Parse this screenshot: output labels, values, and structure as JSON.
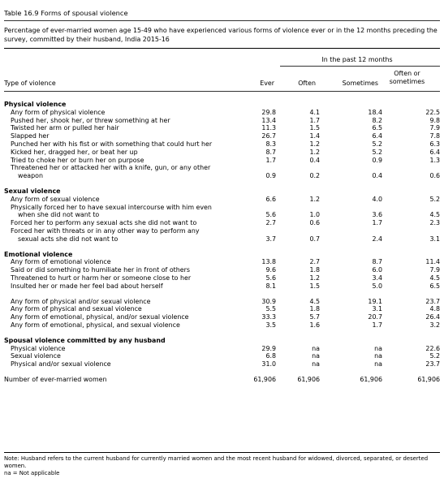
{
  "table": {
    "title": "Table 16.9 Forms of spousal violence",
    "subtitle": "Percentage of ever-married women age 15-49 who have experienced various forms of violence ever or in the 12 months preceding the survey, committed by their husband, India 2015-16",
    "span_label": "In the past 12 months",
    "headers": {
      "type": "Type of violence",
      "ever": "Ever",
      "often": "Often",
      "sometimes": "Sometimes",
      "often_or_sometimes_1": "Often or",
      "often_or_sometimes_2": "sometimes"
    },
    "sections": {
      "physical": {
        "heading": "Physical violence",
        "rows": [
          {
            "label": "Any form of physical violence",
            "ever": "29.8",
            "often": "4.1",
            "sometimes": "18.4",
            "either": "22.5"
          },
          {
            "label": "Pushed her, shook her, or threw something at her",
            "ever": "13.4",
            "often": "1.7",
            "sometimes": "8.2",
            "either": "9.8"
          },
          {
            "label": "Twisted her arm or pulled her hair",
            "ever": "11.3",
            "often": "1.5",
            "sometimes": "6.5",
            "either": "7.9"
          },
          {
            "label": "Slapped her",
            "ever": "26.7",
            "often": "1.4",
            "sometimes": "6.4",
            "either": "7.8"
          },
          {
            "label": "Punched her with his fist or with something that could hurt her",
            "ever": "8.3",
            "often": "1.2",
            "sometimes": "5.2",
            "either": "6.3"
          },
          {
            "label": "Kicked her, dragged her, or beat her up",
            "ever": "8.7",
            "often": "1.2",
            "sometimes": "5.2",
            "either": "6.4"
          },
          {
            "label": "Tried to choke her or burn her on purpose",
            "ever": "1.7",
            "often": "0.4",
            "sometimes": "0.9",
            "either": "1.3"
          }
        ],
        "last_row": {
          "line1": "Threatened her or attacked her with a knife, gun, or any other",
          "line2": "weapon",
          "ever": "0.9",
          "often": "0.2",
          "sometimes": "0.4",
          "either": "0.6"
        }
      },
      "sexual": {
        "heading": "Sexual violence",
        "row1": {
          "label": "Any form of sexual violence",
          "ever": "6.6",
          "often": "1.2",
          "sometimes": "4.0",
          "either": "5.2"
        },
        "row2": {
          "line1": "Physically forced her to have sexual intercourse with him even",
          "line2": "when she did not want to",
          "ever": "5.6",
          "often": "1.0",
          "sometimes": "3.6",
          "either": "4.5"
        },
        "row3": {
          "label": "Forced her to perform any sexual acts she did not want to",
          "ever": "2.7",
          "often": "0.6",
          "sometimes": "1.7",
          "either": "2.3"
        },
        "row4": {
          "line1": "Forced her with threats or in any other way to perform any",
          "line2": "sexual acts she did not want to",
          "ever": "3.7",
          "often": "0.7",
          "sometimes": "2.4",
          "either": "3.1"
        }
      },
      "emotional": {
        "heading": "Emotional violence",
        "rows": [
          {
            "label": "Any form of emotional violence",
            "ever": "13.8",
            "often": "2.7",
            "sometimes": "8.7",
            "either": "11.4"
          },
          {
            "label": "Said or did something to humiliate her in front of others",
            "ever": "9.6",
            "often": "1.8",
            "sometimes": "6.0",
            "either": "7.9"
          },
          {
            "label": "Threatened to hurt or harm her or someone close to her",
            "ever": "5.6",
            "often": "1.2",
            "sometimes": "3.4",
            "either": "4.5"
          },
          {
            "label": "Insulted her or made her feel bad about herself",
            "ever": "8.1",
            "often": "1.5",
            "sometimes": "5.0",
            "either": "6.5"
          }
        ]
      },
      "combined": {
        "rows": [
          {
            "label": "Any form of physical and/or sexual violence",
            "ever": "30.9",
            "often": "4.5",
            "sometimes": "19.1",
            "either": "23.7"
          },
          {
            "label": "Any form of physical and sexual violence",
            "ever": "5.5",
            "often": "1.8",
            "sometimes": "3.1",
            "either": "4.8"
          },
          {
            "label": "Any form of emotional, physical, and/or sexual violence",
            "ever": "33.3",
            "often": "5.7",
            "sometimes": "20.7",
            "either": "26.4"
          },
          {
            "label": "Any form of emotional, physical, and sexual violence",
            "ever": "3.5",
            "often": "1.6",
            "sometimes": "1.7",
            "either": "3.2"
          }
        ]
      },
      "any_husband": {
        "heading": "Spousal violence committed by any husband",
        "rows": [
          {
            "label": "Physical violence",
            "ever": "29.9",
            "often": "na",
            "sometimes": "na",
            "either": "22.6"
          },
          {
            "label": "Sexual violence",
            "ever": "6.8",
            "often": "na",
            "sometimes": "na",
            "either": "5.2"
          },
          {
            "label": "Physical and/or sexual violence",
            "ever": "31.0",
            "often": "na",
            "sometimes": "na",
            "either": "23.7"
          }
        ]
      }
    },
    "total": {
      "label": "Number of ever-married women",
      "ever": "61,906",
      "often": "61,906",
      "sometimes": "61,906",
      "either": "61,906"
    },
    "notes": {
      "note1": "Note: Husband refers to the current husband for currently married women and the most recent husband for widowed, divorced, separated, or deserted women.",
      "note2": "na = Not applicable"
    }
  }
}
